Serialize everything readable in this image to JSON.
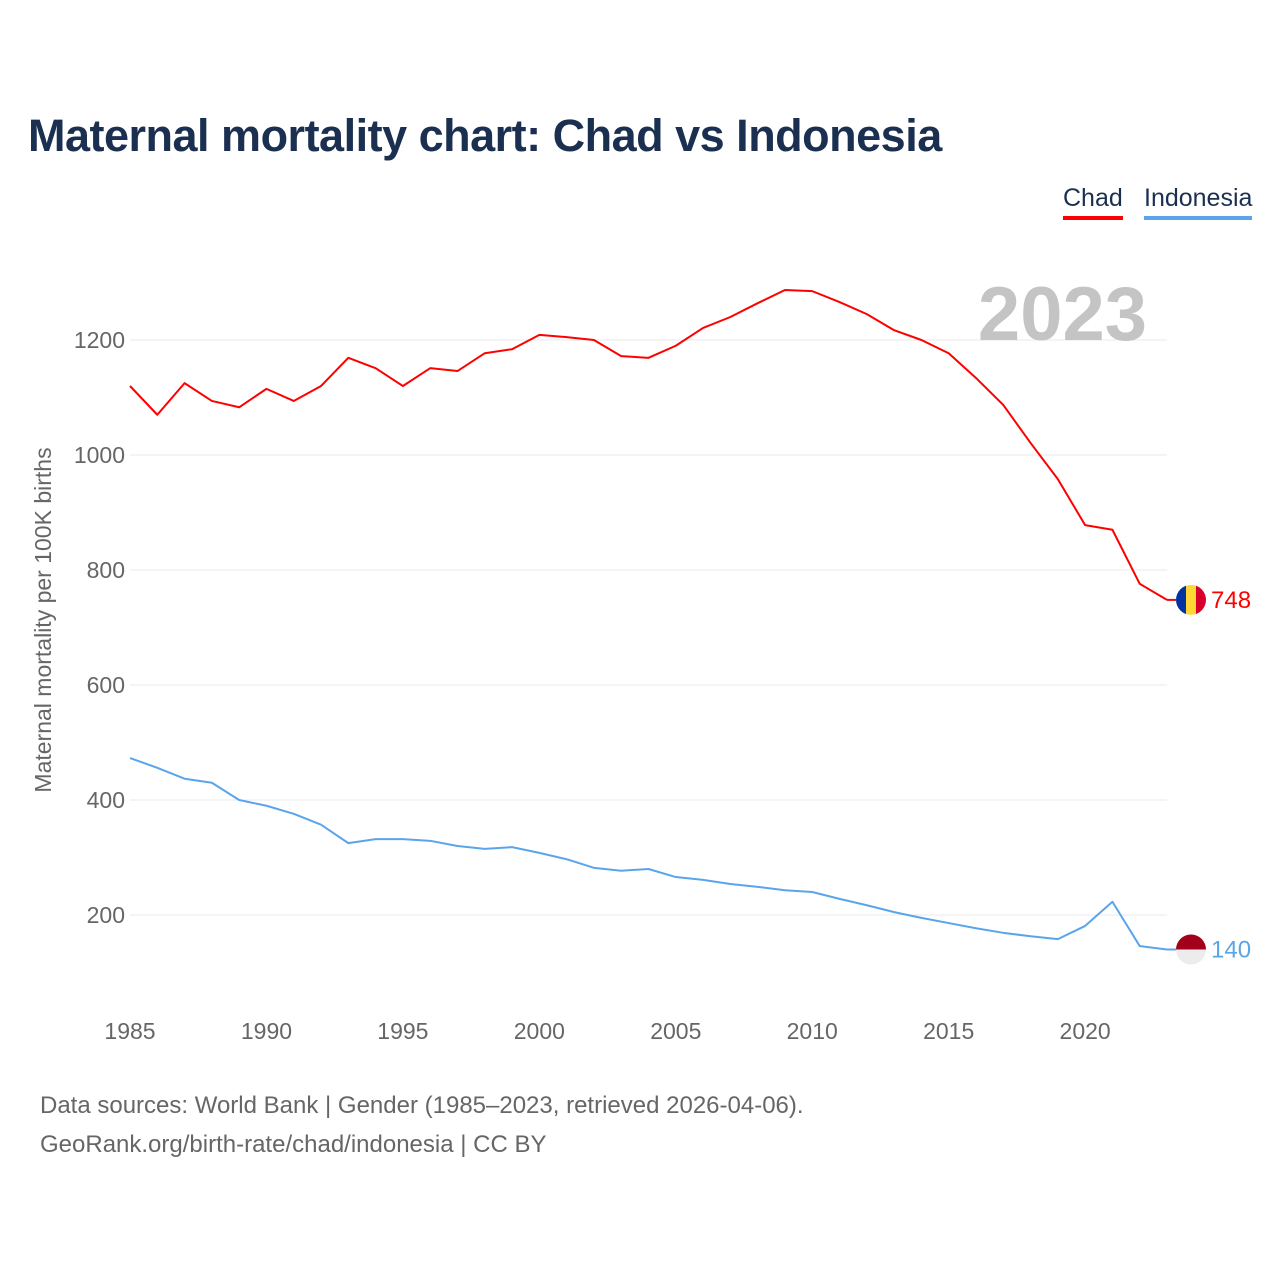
{
  "title": "Maternal mortality chart: Chad vs Indonesia",
  "footer": {
    "line1": "Data sources: World Bank | Gender (1985–2023, retrieved 2026-04-06).",
    "line2": "GeoRank.org/birth-rate/chad/indonesia | CC BY"
  },
  "chart_data": {
    "type": "line",
    "title": "Maternal mortality chart: Chad vs Indonesia",
    "year_label": "2023",
    "xlabel": "",
    "ylabel": "Maternal mortality per 100K births",
    "xlim": [
      1985,
      2023
    ],
    "ylim": [
      0,
      1300
    ],
    "xticks": [
      1985,
      1990,
      1995,
      2000,
      2005,
      2010,
      2015,
      2020
    ],
    "yticks": [
      200,
      400,
      600,
      800,
      1000,
      1200
    ],
    "grid": true,
    "legend_position": "top-right",
    "x": [
      1985,
      1986,
      1987,
      1988,
      1989,
      1990,
      1991,
      1992,
      1993,
      1994,
      1995,
      1996,
      1997,
      1998,
      1999,
      2000,
      2001,
      2002,
      2003,
      2004,
      2005,
      2006,
      2007,
      2008,
      2009,
      2010,
      2011,
      2012,
      2013,
      2014,
      2015,
      2016,
      2017,
      2018,
      2019,
      2020,
      2021,
      2022,
      2023
    ],
    "series": [
      {
        "name": "Chad",
        "color": "#ff0000",
        "end_label": "748",
        "flag": "chad-flag",
        "values": [
          1120,
          1070,
          1125,
          1094,
          1083,
          1115,
          1094,
          1120,
          1169,
          1151,
          1120,
          1151,
          1146,
          1177,
          1184,
          1209,
          1205,
          1200,
          1172,
          1169,
          1190,
          1221,
          1240,
          1264,
          1287,
          1285,
          1266,
          1245,
          1217,
          1200,
          1177,
          1134,
          1087,
          1021,
          958,
          878,
          870,
          776,
          748
        ]
      },
      {
        "name": "Indonesia",
        "color": "#5aa5ea",
        "end_label": "140",
        "flag": "indonesia-flag",
        "values": [
          473,
          456,
          437,
          430,
          400,
          390,
          376,
          357,
          325,
          332,
          332,
          329,
          320,
          315,
          318,
          308,
          297,
          282,
          277,
          280,
          266,
          261,
          254,
          249,
          243,
          240,
          228,
          217,
          205,
          195,
          186,
          177,
          169,
          163,
          158,
          181,
          223,
          146,
          140
        ]
      }
    ]
  }
}
